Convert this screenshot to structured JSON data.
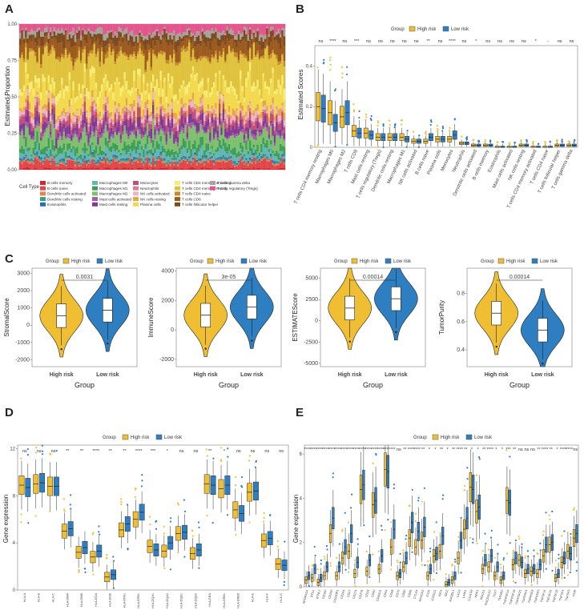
{
  "panels": {
    "A": "A",
    "B": "B",
    "C": "C",
    "D": "D",
    "E": "E"
  },
  "colors": {
    "high": "#F0BE32",
    "low": "#2E7FC2"
  },
  "chart_data": [
    {
      "id": "A",
      "type": "bar",
      "ylabel": "Estimated Proportion",
      "yticks": [
        "0.00",
        "0.25",
        "0.50",
        "0.75",
        "1.00"
      ],
      "legend_title": "Cell Type",
      "n_samples": 140,
      "series": [
        {
          "name": "B cells memory",
          "color": "#D7262B",
          "mean": 0.01
        },
        {
          "name": "B cells naive",
          "color": "#E0474C",
          "mean": 0.04
        },
        {
          "name": "Dendritic cells activated",
          "color": "#E9804F",
          "mean": 0.01
        },
        {
          "name": "Dendritic cells resting",
          "color": "#3A9E8D",
          "mean": 0.01
        },
        {
          "name": "Eosinophils",
          "color": "#2E6FAE",
          "mean": 0.01
        },
        {
          "name": "Macrophages M0",
          "color": "#64B6B3",
          "mean": 0.04
        },
        {
          "name": "Macrophages M1",
          "color": "#3E9E57",
          "mean": 0.04
        },
        {
          "name": "Macrophages M2",
          "color": "#7EC06E",
          "mean": 0.08
        },
        {
          "name": "Mast cells activated",
          "color": "#A45CA8",
          "mean": 0.02
        },
        {
          "name": "Mast cells resting",
          "color": "#7E3B96",
          "mean": 0.05
        },
        {
          "name": "Monocytes",
          "color": "#C44D79",
          "mean": 0.04
        },
        {
          "name": "Neutrophils",
          "color": "#D97F92",
          "mean": 0.02
        },
        {
          "name": "NK cells activated",
          "color": "#EDB6C8",
          "mean": 0.03
        },
        {
          "name": "NK cells resting",
          "color": "#E8A54A",
          "mean": 0.03
        },
        {
          "name": "Plasma cells",
          "color": "#F2D94E",
          "mean": 0.12
        },
        {
          "name": "T cells CD4 memory activated",
          "color": "#F7EC74",
          "mean": 0.04
        },
        {
          "name": "T cells CD4 memory resting",
          "color": "#E0C23D",
          "mean": 0.19
        },
        {
          "name": "T cells CD4 naive",
          "color": "#C88A2C",
          "mean": 0.02
        },
        {
          "name": "T cells CD8",
          "color": "#9C5A1E",
          "mean": 0.08
        },
        {
          "name": "T cells follicular helper",
          "color": "#7B4A21",
          "mean": 0.05
        },
        {
          "name": "T cells gamma delta",
          "color": "#A7A39A",
          "mean": 0.03
        },
        {
          "name": "T cells regulatory (Tregs)",
          "color": "#E4558E",
          "mean": 0.05
        }
      ]
    },
    {
      "id": "B",
      "type": "box",
      "legend_title": "Group",
      "groups": [
        "High risk",
        "Low risk"
      ],
      "ylabel": "Estimated Scores",
      "xlabel": "",
      "ylim": [
        0,
        0.5
      ],
      "yticks": [
        0,
        0.2,
        0.4
      ],
      "categories": [
        "T cells CD4 memory resting",
        "Macrophages M0",
        "Macrophages M2",
        "T cells CD8",
        "Mast cells resting",
        "T cells regulatory (Tregs)",
        "Dendritic cells resting",
        "Macrophages M1",
        "NK cells activated",
        "B cells naive",
        "Plasma cells",
        "Monocytes",
        "Neutrophils",
        "Dendritic cells activated",
        "B cells memory",
        "Eosinophils",
        "Mast cells activated",
        "NK cells resting",
        "T cells CD4 memory activated",
        "T cells CD4 naive",
        "T cells follicular helper",
        "T cells gamma delta"
      ],
      "significance": [
        "ns",
        "****",
        "ns",
        "***",
        "ns",
        "ns",
        "ns",
        "ns",
        "ns",
        "**",
        "ns",
        "****",
        "ns",
        "*",
        "ns",
        "ns",
        "ns",
        "ns",
        "*",
        "-",
        "ns",
        "ns"
      ],
      "high_median": [
        0.2,
        0.17,
        0.15,
        0.08,
        0.07,
        0.05,
        0.05,
        0.05,
        0.03,
        0.03,
        0.04,
        0.04,
        0.02,
        0.01,
        0.01,
        0.0,
        0.0,
        0.01,
        0.0,
        0.0,
        0.01,
        0.01
      ],
      "low_median": [
        0.19,
        0.12,
        0.17,
        0.07,
        0.06,
        0.05,
        0.05,
        0.04,
        0.03,
        0.05,
        0.04,
        0.06,
        0.02,
        0.01,
        0.01,
        0.0,
        0.0,
        0.01,
        0.0,
        0.0,
        0.01,
        0.01
      ]
    },
    {
      "id": "C",
      "type": "violin",
      "legend_title": "Group",
      "xlabel": "Group",
      "groups": [
        "High risk",
        "Low risk"
      ],
      "plots": [
        {
          "ylabel": "StromalScore",
          "pvalue": "0.0031",
          "yticks": [
            -2000,
            -1000,
            0,
            1000,
            2000,
            3000
          ],
          "ylim": [
            -2400,
            3300
          ],
          "high_median": 550,
          "low_median": 870
        },
        {
          "ylabel": "ImmuneScore",
          "pvalue": "3e-05",
          "yticks": [
            -2000,
            0,
            2000,
            4000
          ],
          "ylim": [
            -2500,
            4200
          ],
          "high_median": 1000,
          "low_median": 1550
        },
        {
          "ylabel": "ESTIMATEScore",
          "pvalue": "0.00014",
          "yticks": [
            -5000,
            -2500,
            0,
            2500,
            5000
          ],
          "ylim": [
            -5400,
            6200
          ],
          "high_median": 1500,
          "low_median": 2600
        },
        {
          "ylabel": "TumorPurity",
          "pvalue": "0.00014",
          "yticks": [
            0.4,
            0.6,
            0.8
          ],
          "ylim": [
            0.28,
            0.98
          ],
          "high_median": 0.66,
          "low_median": 0.54
        }
      ]
    },
    {
      "id": "D",
      "type": "box",
      "legend_title": "Group",
      "groups": [
        "High risk",
        "Low risk"
      ],
      "ylabel": "Gene expression",
      "ylim": [
        0,
        12.3
      ],
      "yticks": [
        0,
        4,
        8,
        12
      ],
      "categories": [
        "HLA-A",
        "HLA-B",
        "HLA-C",
        "HLA-DMA",
        "HLA-DMB",
        "HLA-DOA",
        "HLA-DOB",
        "HLA-DPA1",
        "HLA-DPB1",
        "HLA-DQA1",
        "HLA-DQA2",
        "HLA-DQB1",
        "HLA-DQB2",
        "HLA-DRA",
        "HLA-DRB1",
        "HLA-DRB5",
        "HLA-E",
        "HLA-F",
        "HLA-G"
      ],
      "significance": [
        "ns",
        "ns",
        "ns",
        "**",
        "**",
        "****",
        "**",
        "**",
        "****",
        "***",
        "*",
        "ns",
        "ns",
        "**",
        "*",
        "ns",
        "ns",
        "ns",
        "ns"
      ],
      "high_median": [
        8.9,
        9.0,
        8.8,
        5.0,
        3.2,
        2.8,
        1.1,
        5.1,
        6.0,
        3.7,
        3.3,
        4.8,
        3.1,
        9.0,
        8.6,
        6.8,
        8.3,
        4.2,
        2.2
      ],
      "low_median": [
        8.7,
        9.1,
        8.8,
        5.2,
        3.6,
        3.3,
        1.3,
        5.6,
        6.6,
        3.4,
        4.0,
        4.9,
        3.4,
        8.9,
        8.9,
        6.5,
        8.4,
        4.4,
        2.1
      ]
    },
    {
      "id": "E",
      "type": "box",
      "legend_title": "Group",
      "groups": [
        "High risk",
        "Low risk"
      ],
      "ylabel": "Gene expression",
      "ylim": [
        0,
        6.4
      ],
      "yticks": [
        0,
        2,
        4,
        6
      ],
      "categories": [
        "ADORA2A",
        "BTLA",
        "BTNL2",
        "CD160",
        "CD200",
        "CD200R1",
        "CD244",
        "CD27",
        "CD274",
        "CD276",
        "CD28",
        "CD40",
        "CD40LG",
        "CD44",
        "CD48",
        "CD70",
        "CD80",
        "CD86",
        "CTLA4",
        "HAVCR2",
        "ICOS",
        "ICOSLG",
        "IDO1",
        "IDO2",
        "KIR3DL1",
        "LAG3",
        "LAIR1",
        "LGALS9",
        "NRP1",
        "PDCD1",
        "PDCD1LG2",
        "TIGIT",
        "TMIGD2",
        "TNFRSF14",
        "TNFRSF18",
        "TNFRSF25",
        "TNFRSF4",
        "TNFRSF8",
        "TNFRSF9",
        "TNFSF14",
        "TNFSF15",
        "TNFSF18",
        "TNFSF4",
        "TNFSF9",
        "VSIR"
      ],
      "significance": [
        "****",
        "****",
        "****",
        "****",
        "****",
        "****",
        "****",
        "****",
        "****",
        "****",
        "****",
        "****",
        "****",
        "****",
        "***",
        "ns",
        "**",
        "****",
        "****",
        "**",
        "*",
        "*",
        "**",
        "*",
        "**",
        "****",
        "**",
        "*",
        "*",
        "**",
        "****",
        "*",
        "*",
        "***",
        "**",
        "ns",
        "ns",
        "ns",
        "**",
        "****",
        "**",
        "*",
        "****",
        "****",
        "ns"
      ],
      "high_median": [
        0.3,
        0.4,
        0.2,
        0.5,
        2.4,
        0.5,
        1.3,
        1.6,
        0.6,
        4.4,
        0.7,
        3.7,
        0.8,
        5.3,
        1.8,
        0.5,
        0.9,
        2.2,
        1.8,
        2.1,
        0.5,
        1.4,
        1.6,
        0.1,
        0.3,
        1.3,
        2.6,
        4.5,
        3.4,
        0.8,
        0.9,
        0.5,
        0.3,
        3.9,
        1.0,
        1.2,
        0.6,
        0.7,
        0.6,
        1.4,
        1.9,
        0.4,
        1.1,
        1.6,
        2.2
      ],
      "low_median": [
        0.5,
        0.8,
        0.4,
        0.9,
        3.1,
        0.9,
        1.8,
        2.4,
        1.1,
        4.6,
        1.2,
        3.9,
        1.4,
        5.2,
        2.6,
        0.6,
        1.3,
        2.9,
        2.5,
        2.7,
        0.8,
        1.5,
        2.3,
        0.2,
        0.5,
        2.1,
        3.1,
        4.4,
        3.6,
        1.2,
        1.4,
        0.9,
        0.5,
        3.8,
        1.3,
        1.1,
        0.8,
        0.8,
        1.0,
        1.9,
        2.0,
        0.6,
        1.3,
        1.5,
        2.4
      ]
    }
  ]
}
